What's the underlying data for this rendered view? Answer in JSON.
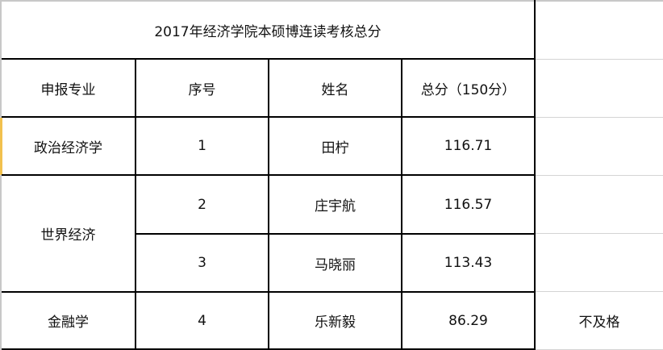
{
  "title": "2017年经济学院本硕博连读考核总分",
  "headers": [
    "申报专业",
    "序号",
    "姓名",
    "总分（150分）"
  ],
  "majors": [
    "政治经济学",
    "世界经济",
    "金融学"
  ],
  "rows": [
    {
      "no": "1",
      "name": "田柠",
      "score": "116.71"
    },
    {
      "no": "2",
      "name": "庄宇航",
      "score": "116.57"
    },
    {
      "no": "3",
      "name": "马晓丽",
      "score": "113.43"
    },
    {
      "no": "4",
      "name": "乐新毅",
      "score": "86.29",
      "note": "不及格"
    }
  ],
  "colors": {
    "selection": "#f2c14e",
    "grid": "#d4d4d4",
    "border": "#000000"
  }
}
